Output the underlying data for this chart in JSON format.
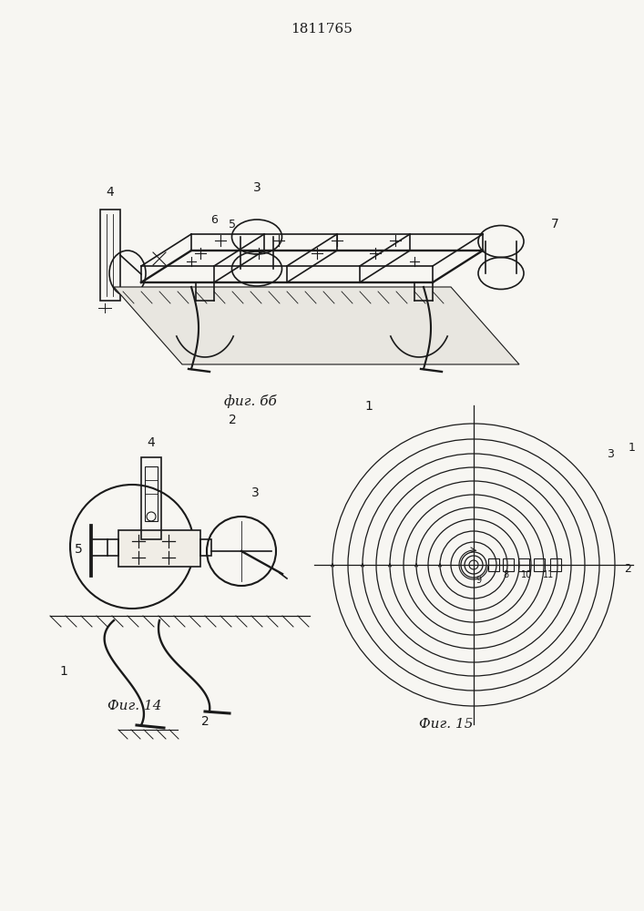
{
  "title": "1811765",
  "fig13_label": "фиг. бб",
  "fig14_label": "Фиг. 14",
  "fig15_label": "Фиг.15",
  "bg_color": "#f7f6f2",
  "line_color": "#1a1a1a",
  "fig15_radii": [
    14,
    25,
    37,
    50,
    63,
    77,
    92,
    107,
    122,
    138,
    155
  ]
}
